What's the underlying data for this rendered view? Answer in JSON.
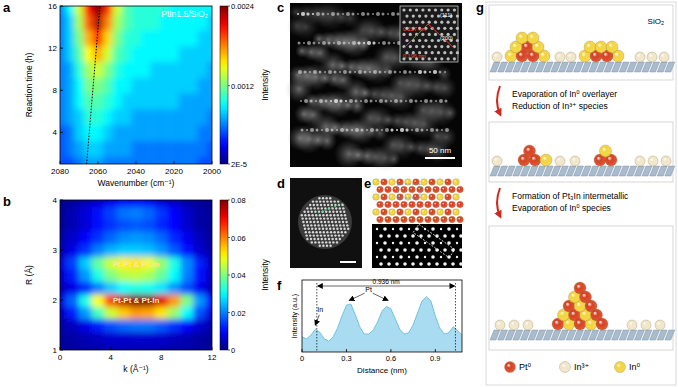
{
  "chart_data": [
    {
      "type": "heatmap",
      "panel_label": "a",
      "title": "PtIn1.5/SiO₂",
      "xlabel": "Wavenumber (cm⁻¹)",
      "ylabel": "Reaction time (h)",
      "x": [
        2080,
        2075,
        2070,
        2065,
        2060,
        2055,
        2050,
        2045,
        2040,
        2035,
        2030,
        2025,
        2020,
        2015,
        2010,
        2005,
        2000
      ],
      "y": [
        1,
        2.5,
        4,
        5.5,
        7,
        8.5,
        10,
        11.5,
        13,
        14.5,
        16
      ],
      "z": [
        [
          0.0005,
          0.0005,
          0.0006,
          0.0007,
          0.0007,
          0.0006,
          0.0006,
          0.0006,
          0.0006,
          0.0006,
          0.0006,
          0.0006,
          0.0006,
          0.0006,
          0.0006,
          0.0005,
          0.0005
        ],
        [
          0.0005,
          0.0006,
          0.0007,
          0.0008,
          0.0008,
          0.0007,
          0.0007,
          0.0007,
          0.0006,
          0.0006,
          0.0006,
          0.0006,
          0.0006,
          0.0006,
          0.0006,
          0.0006,
          0.0005
        ],
        [
          0.0005,
          0.0006,
          0.0008,
          0.0009,
          0.0009,
          0.0008,
          0.0007,
          0.0007,
          0.0007,
          0.0007,
          0.0007,
          0.0007,
          0.0007,
          0.0007,
          0.0007,
          0.0006,
          0.0006
        ],
        [
          0.0006,
          0.0007,
          0.0008,
          0.001,
          0.001,
          0.0009,
          0.0008,
          0.0008,
          0.0007,
          0.0007,
          0.0007,
          0.0007,
          0.0007,
          0.0007,
          0.0007,
          0.0007,
          0.0006
        ],
        [
          0.0006,
          0.0007,
          0.0009,
          0.0011,
          0.0011,
          0.001,
          0.0009,
          0.0008,
          0.0008,
          0.0008,
          0.0008,
          0.0008,
          0.0008,
          0.0007,
          0.0007,
          0.0007,
          0.0007
        ],
        [
          0.0006,
          0.0007,
          0.0009,
          0.0012,
          0.0012,
          0.0011,
          0.0009,
          0.0009,
          0.0008,
          0.0008,
          0.0008,
          0.0008,
          0.0008,
          0.0008,
          0.0008,
          0.0007,
          0.0007
        ],
        [
          0.0006,
          0.0007,
          0.001,
          0.0013,
          0.0014,
          0.0012,
          0.001,
          0.0009,
          0.0009,
          0.0009,
          0.0008,
          0.0008,
          0.0008,
          0.0008,
          0.0008,
          0.0008,
          0.0007
        ],
        [
          0.0006,
          0.0008,
          0.0011,
          0.0015,
          0.0017,
          0.0014,
          0.0011,
          0.001,
          0.0009,
          0.0009,
          0.0009,
          0.0009,
          0.0009,
          0.0008,
          0.0008,
          0.0008,
          0.0008
        ],
        [
          0.0006,
          0.0008,
          0.0012,
          0.0017,
          0.002,
          0.0016,
          0.0012,
          0.001,
          0.001,
          0.0009,
          0.0009,
          0.0009,
          0.0009,
          0.0009,
          0.0009,
          0.0008,
          0.0008
        ],
        [
          0.0006,
          0.0008,
          0.0013,
          0.0019,
          0.0023,
          0.0018,
          0.0013,
          0.0011,
          0.001,
          0.001,
          0.001,
          0.0009,
          0.0009,
          0.0009,
          0.0009,
          0.0009,
          0.0008
        ],
        [
          0.0006,
          0.0009,
          0.0014,
          0.0021,
          0.0024,
          0.002,
          0.0014,
          0.0011,
          0.001,
          0.001,
          0.001,
          0.001,
          0.0009,
          0.0009,
          0.0009,
          0.0009,
          0.0009
        ]
      ],
      "xlim": [
        2080,
        2000
      ],
      "ylim": [
        1,
        16
      ],
      "xticks": [
        2080,
        2060,
        2040,
        2020,
        2000
      ],
      "yticks": [
        4,
        8,
        12,
        16
      ],
      "colorbar": {
        "label": "Intensity",
        "range": [
          2e-05,
          0.0024
        ],
        "ticks": [
          {
            "value": 2e-05,
            "label": "2E-5"
          },
          0.0012,
          0.0024
        ]
      },
      "peak_trace": {
        "x": [
          2066,
          2059
        ],
        "y": [
          1,
          16
        ]
      }
    },
    {
      "type": "heatmap",
      "panel_label": "b",
      "xlabel": "k (Å⁻¹)",
      "ylabel": "R (Å)",
      "x": [
        0,
        1,
        2,
        3,
        4,
        5,
        6,
        7,
        8,
        9,
        10,
        11,
        12
      ],
      "y": [
        1,
        1.25,
        1.5,
        1.75,
        2,
        2.25,
        2.5,
        2.75,
        3,
        3.25,
        3.5,
        3.75,
        4
      ],
      "z": [
        [
          0.002,
          0.002,
          0.003,
          0.003,
          0.004,
          0.004,
          0.004,
          0.004,
          0.004,
          0.003,
          0.003,
          0.002,
          0.002
        ],
        [
          0.002,
          0.003,
          0.004,
          0.005,
          0.006,
          0.006,
          0.006,
          0.006,
          0.006,
          0.005,
          0.004,
          0.003,
          0.002
        ],
        [
          0.003,
          0.005,
          0.008,
          0.012,
          0.016,
          0.018,
          0.019,
          0.019,
          0.017,
          0.014,
          0.01,
          0.006,
          0.003
        ],
        [
          0.005,
          0.012,
          0.022,
          0.035,
          0.046,
          0.054,
          0.058,
          0.057,
          0.052,
          0.042,
          0.03,
          0.016,
          0.007
        ],
        [
          0.008,
          0.018,
          0.032,
          0.05,
          0.065,
          0.075,
          0.08,
          0.079,
          0.072,
          0.058,
          0.04,
          0.022,
          0.01
        ],
        [
          0.004,
          0.008,
          0.013,
          0.02,
          0.026,
          0.03,
          0.032,
          0.031,
          0.028,
          0.022,
          0.016,
          0.009,
          0.004
        ],
        [
          0.006,
          0.012,
          0.022,
          0.032,
          0.04,
          0.044,
          0.045,
          0.043,
          0.038,
          0.03,
          0.02,
          0.011,
          0.005
        ],
        [
          0.007,
          0.015,
          0.026,
          0.038,
          0.046,
          0.051,
          0.052,
          0.049,
          0.042,
          0.032,
          0.021,
          0.012,
          0.005
        ],
        [
          0.004,
          0.008,
          0.014,
          0.02,
          0.024,
          0.026,
          0.026,
          0.025,
          0.022,
          0.017,
          0.011,
          0.006,
          0.003
        ],
        [
          0.003,
          0.006,
          0.01,
          0.014,
          0.018,
          0.021,
          0.022,
          0.021,
          0.018,
          0.013,
          0.009,
          0.005,
          0.002
        ],
        [
          0.002,
          0.004,
          0.007,
          0.011,
          0.014,
          0.016,
          0.017,
          0.016,
          0.013,
          0.01,
          0.006,
          0.003,
          0.002
        ],
        [
          0.002,
          0.004,
          0.007,
          0.011,
          0.015,
          0.019,
          0.02,
          0.018,
          0.014,
          0.01,
          0.006,
          0.003,
          0.002
        ],
        [
          0.001,
          0.002,
          0.004,
          0.006,
          0.008,
          0.01,
          0.01,
          0.009,
          0.007,
          0.005,
          0.003,
          0.002,
          0.001
        ]
      ],
      "xlim": [
        0,
        12
      ],
      "ylim": [
        1,
        4
      ],
      "xticks": [
        0,
        4,
        8,
        12
      ],
      "yticks": [
        1,
        2,
        3,
        4
      ],
      "colorbar": {
        "label": "Intensity",
        "range": [
          0,
          0.08
        ],
        "ticks": [
          0,
          0.02,
          0.04,
          0.06,
          0.08
        ]
      },
      "annotations": [
        {
          "text": "Pt-Pt & Pt-In",
          "x": 6,
          "y": 2.72
        },
        {
          "text": "Pt-Pt & Pt-In",
          "x": 6,
          "y": 2.0
        }
      ]
    },
    {
      "type": "area",
      "panel_label": "f",
      "color": "#a9dcf0",
      "xlabel": "Distance (nm)",
      "ylabel": "Intensity (a.u.)",
      "x": [
        0,
        0.03,
        0.06,
        0.09,
        0.12,
        0.15,
        0.18,
        0.21,
        0.24,
        0.27,
        0.3,
        0.33,
        0.36,
        0.39,
        0.42,
        0.45,
        0.48,
        0.51,
        0.54,
        0.57,
        0.6,
        0.63,
        0.66,
        0.69,
        0.72,
        0.75,
        0.78,
        0.81,
        0.84,
        0.87,
        0.9,
        0.93,
        0.96,
        0.99,
        1.02,
        1.05,
        1.08
      ],
      "values": [
        0.25,
        0.22,
        0.28,
        0.38,
        0.33,
        0.22,
        0.18,
        0.25,
        0.4,
        0.6,
        0.78,
        0.8,
        0.62,
        0.42,
        0.3,
        0.3,
        0.36,
        0.5,
        0.68,
        0.76,
        0.72,
        0.55,
        0.38,
        0.3,
        0.32,
        0.45,
        0.65,
        0.85,
        0.92,
        0.85,
        0.6,
        0.4,
        0.3,
        0.32,
        0.42,
        0.36,
        0.28
      ],
      "xlim": [
        0,
        1.08
      ],
      "ylim": [
        0,
        1.2
      ],
      "xticks": [
        0,
        0.3,
        0.6,
        0.9
      ],
      "tick_labels": "x",
      "annotations": [
        {
          "text": "0.936 nm",
          "x": [
            0.1,
            1.036
          ]
        },
        {
          "text": "In",
          "x": 0.09
        },
        {
          "text": "Pt",
          "x": [
            0.32,
            0.58
          ]
        }
      ]
    }
  ],
  "images": [
    {
      "panel_label": "c",
      "scale_bar": "50 nm",
      "inset_labels": [
        "0.227 nm",
        "0.196 nm",
        "(111)",
        "(200)"
      ]
    },
    {
      "panel_label": "d"
    },
    {
      "panel_label": "e"
    }
  ],
  "schematic": {
    "panel_label": "g",
    "substrate": "SiO₂",
    "steps": [
      [
        "Evaporation of In⁰ overlayer",
        "Reduction of In³⁺ species"
      ],
      [
        "Formation of Pt₃In intermetallic",
        "Evaporation of In⁰ species"
      ]
    ],
    "legend": [
      {
        "name": "Pt⁰",
        "color": "#d8401e"
      },
      {
        "name": "In³⁺",
        "color": "#efe6c9"
      },
      {
        "name": "In⁰",
        "color": "#f3d43a"
      }
    ]
  }
}
